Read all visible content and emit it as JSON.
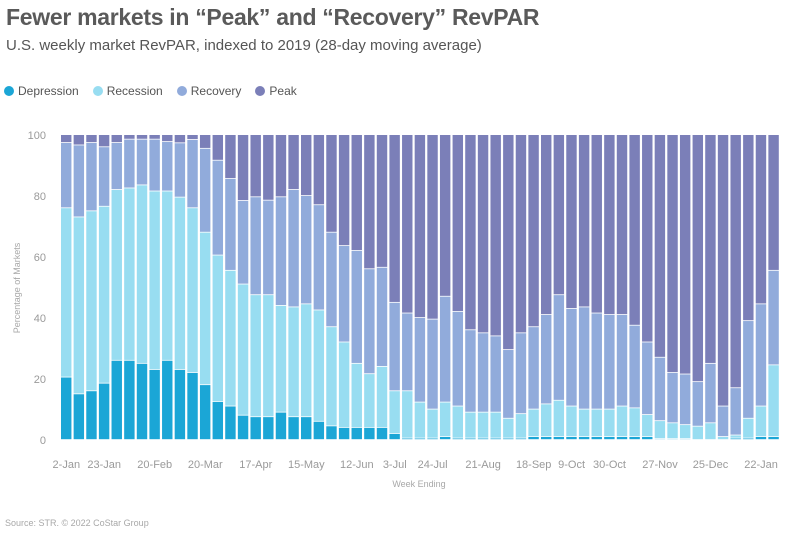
{
  "header": {
    "title": "Fewer markets in “Peak” and “Recovery” RevPAR",
    "subtitle": "U.S. weekly market RevPAR, indexed to 2019 (28-day moving average)"
  },
  "footer": {
    "source": "Source: STR. © 2022 CoStar Group"
  },
  "chart_data": {
    "type": "bar",
    "stacked": true,
    "title": "Fewer markets in “Peak” and “Recovery” RevPAR",
    "subtitle": "U.S. weekly market RevPAR, indexed to 2019 (28-day moving average)",
    "xlabel": "Week Ending",
    "ylabel": "Percentage of Markets",
    "ylim": [
      0,
      100
    ],
    "yticks": [
      0,
      20,
      40,
      60,
      80,
      100
    ],
    "grid": false,
    "legend_position": "top-left",
    "x_tick_labels": [
      {
        "index": 0,
        "label": "2-Jan"
      },
      {
        "index": 3,
        "label": "23-Jan"
      },
      {
        "index": 7,
        "label": "20-Feb"
      },
      {
        "index": 11,
        "label": "20-Mar"
      },
      {
        "index": 15,
        "label": "17-Apr"
      },
      {
        "index": 19,
        "label": "15-May"
      },
      {
        "index": 23,
        "label": "12-Jun"
      },
      {
        "index": 26,
        "label": "3-Jul"
      },
      {
        "index": 29,
        "label": "24-Jul"
      },
      {
        "index": 33,
        "label": "21-Aug"
      },
      {
        "index": 37,
        "label": "18-Sep"
      },
      {
        "index": 40,
        "label": "9-Oct"
      },
      {
        "index": 43,
        "label": "30-Oct"
      },
      {
        "index": 47,
        "label": "27-Nov"
      },
      {
        "index": 51,
        "label": "25-Dec"
      },
      {
        "index": 55,
        "label": "22-Jan"
      }
    ],
    "categories": [
      "2-Jan",
      "9-Jan",
      "16-Jan",
      "23-Jan",
      "30-Jan",
      "6-Feb",
      "13-Feb",
      "20-Feb",
      "27-Feb",
      "6-Mar",
      "13-Mar",
      "20-Mar",
      "27-Mar",
      "3-Apr",
      "10-Apr",
      "17-Apr",
      "24-Apr",
      "1-May",
      "8-May",
      "15-May",
      "22-May",
      "29-May",
      "5-Jun",
      "12-Jun",
      "19-Jun",
      "26-Jun",
      "3-Jul",
      "10-Jul",
      "17-Jul",
      "24-Jul",
      "31-Jul",
      "7-Aug",
      "14-Aug",
      "21-Aug",
      "28-Aug",
      "4-Sep",
      "11-Sep",
      "18-Sep",
      "25-Sep",
      "2-Oct",
      "9-Oct",
      "16-Oct",
      "23-Oct",
      "30-Oct",
      "6-Nov",
      "13-Nov",
      "20-Nov",
      "27-Nov",
      "4-Dec",
      "11-Dec",
      "18-Dec",
      "25-Dec",
      "1-Jan",
      "8-Jan",
      "15-Jan",
      "22-Jan",
      "29-Jan"
    ],
    "series": [
      {
        "name": "Depression",
        "color": "#1BA6D6",
        "values": [
          20.5,
          15,
          16,
          18.5,
          26,
          26,
          25,
          23,
          26,
          23,
          22,
          18,
          12.5,
          11,
          8,
          7.5,
          7.5,
          9,
          7.5,
          7.5,
          6,
          4.5,
          4,
          4,
          4,
          4,
          2,
          0.5,
          0.5,
          0.5,
          1,
          0.5,
          0.5,
          0.5,
          0.5,
          0.5,
          0.5,
          1,
          1,
          1,
          1,
          1,
          1,
          1,
          1,
          1,
          1,
          0.3,
          0.3,
          0.3,
          0,
          0,
          0,
          0.5,
          0.5,
          1,
          1
        ]
      },
      {
        "name": "Recession",
        "color": "#98DDF1",
        "values": [
          55.5,
          58,
          59,
          58,
          56,
          56.5,
          58.5,
          58.5,
          55.5,
          56.5,
          54,
          50,
          48,
          44.5,
          43,
          40,
          40,
          35,
          36,
          37,
          36.5,
          32.5,
          28,
          21,
          17.6,
          20,
          14,
          15.5,
          11.8,
          9.5,
          11.3,
          10.5,
          8.5,
          8.5,
          8.5,
          6.5,
          8,
          9,
          10.7,
          11.9,
          10,
          9,
          9,
          9,
          10,
          9.4,
          7.2,
          5.9,
          5.2,
          4.6,
          4.4,
          5.5,
          1,
          1,
          6.5,
          10,
          23.5
        ]
      },
      {
        "name": "Recovery",
        "color": "#91ABDB",
        "values": [
          21.4,
          23.6,
          22.4,
          19.5,
          15.4,
          16,
          15,
          17,
          16.2,
          17.8,
          22.4,
          27.5,
          31.1,
          30.1,
          27.4,
          32.1,
          31,
          35.6,
          38.5,
          35.5,
          34.5,
          31,
          31.6,
          37,
          34.4,
          32.5,
          29,
          25.5,
          27.7,
          29.5,
          34.7,
          31,
          27,
          26,
          25,
          22.5,
          26.5,
          27,
          29.3,
          34.6,
          32,
          33.5,
          31.5,
          31,
          30,
          27.1,
          23.8,
          20.8,
          16.5,
          16.6,
          14.6,
          19.5,
          10,
          15.5,
          32,
          33.5,
          31
        ]
      },
      {
        "name": "Peak",
        "color": "#7B7FB8",
        "values": [
          2.6,
          3.4,
          2.6,
          4,
          2.6,
          1.5,
          1.5,
          1.5,
          2.3,
          2.7,
          1.6,
          4.5,
          8.4,
          14.4,
          21.6,
          20.4,
          21.5,
          20.4,
          18,
          20,
          23,
          32,
          36.4,
          38,
          44,
          43.5,
          55,
          58.5,
          60,
          60.5,
          53,
          58,
          64,
          65,
          66,
          70.5,
          65,
          63,
          59,
          52.5,
          57,
          56.5,
          58.5,
          59,
          59,
          62.5,
          68,
          73,
          78,
          78.5,
          81,
          75,
          89,
          83,
          61,
          55.5,
          44.5
        ]
      }
    ]
  }
}
